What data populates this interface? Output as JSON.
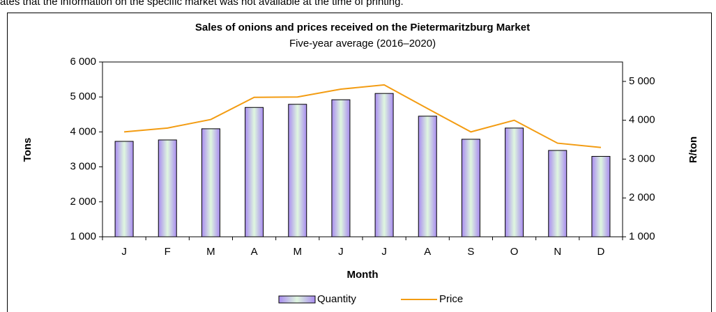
{
  "header_text": "ates that the information on the specific market was not available at the time of printing.",
  "chart_data": {
    "type": "bar_line",
    "title": "Sales of onions and prices received on the Pietermaritzburg Market",
    "subtitle": "Five-year average (2016–2020)",
    "x_label": "Month",
    "y_label": "Tons",
    "y2_label": "R/ton",
    "categories": [
      "J",
      "F",
      "M",
      "A",
      "M",
      "J",
      "J",
      "A",
      "S",
      "O",
      "N",
      "D"
    ],
    "series": [
      {
        "name": "Quantity",
        "type": "bar",
        "color": "#b7a0f0",
        "values": [
          3730,
          3770,
          4090,
          4700,
          4790,
          4920,
          5100,
          4450,
          3790,
          4110,
          3470,
          3300
        ]
      },
      {
        "name": "Price",
        "type": "line",
        "axis": "y2",
        "color": "#f39c12",
        "values": [
          3700,
          3800,
          4020,
          4590,
          4600,
          4800,
          4910,
          4300,
          3700,
          4000,
          3410,
          3300
        ]
      }
    ],
    "ylim": [
      1000,
      6000
    ],
    "yticks": [
      {
        "value": 1000,
        "label": "1 000"
      },
      {
        "value": 2000,
        "label": "2 000"
      },
      {
        "value": 3000,
        "label": "3 000"
      },
      {
        "value": 4000,
        "label": "4 000"
      },
      {
        "value": 5000,
        "label": "5 000"
      },
      {
        "value": 6000,
        "label": "6 000"
      }
    ],
    "y2lim": [
      1000,
      5500
    ],
    "y2ticks": [
      {
        "value": 1000,
        "label": "1 000"
      },
      {
        "value": 2000,
        "label": "2 000"
      },
      {
        "value": 3000,
        "label": "3 000"
      },
      {
        "value": 4000,
        "label": "4 000"
      },
      {
        "value": 5000,
        "label": "5 000"
      }
    ],
    "legend": "bottom"
  }
}
